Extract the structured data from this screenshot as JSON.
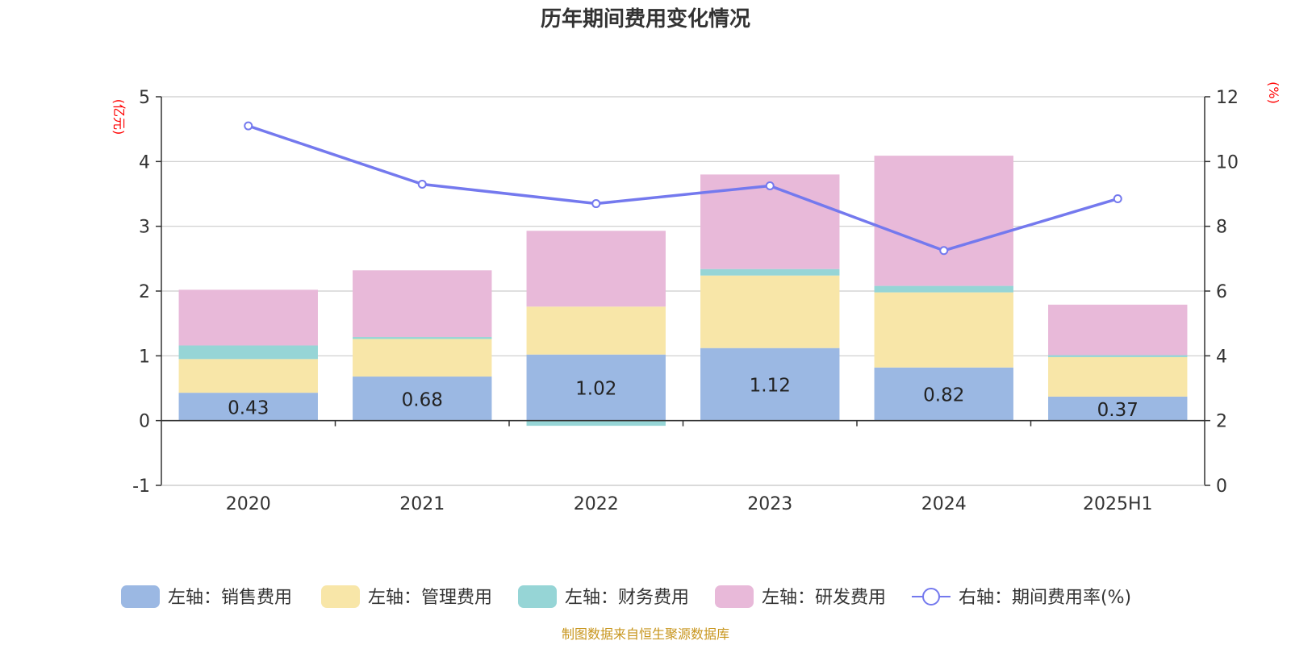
{
  "title": "历年期间费用变化情况",
  "source": "制图数据来自恒生聚源数据库",
  "left_unit": "(亿元)",
  "right_unit": "(%)",
  "colors": {
    "sales": "#9bb8e3",
    "admin": "#f8e6a8",
    "finance": "#96d5d6",
    "rnd": "#e8b9d9",
    "rate": "#7479ee",
    "axis_unit": "#ff0000",
    "source": "#c8961e"
  },
  "chart_data": {
    "type": "bar",
    "stacked": true,
    "categories": [
      "2020",
      "2021",
      "2022",
      "2023",
      "2024",
      "2025H1"
    ],
    "left_axis": {
      "ylim": [
        -1,
        5
      ],
      "ticks": [
        -1,
        0,
        1,
        2,
        3,
        4,
        5
      ]
    },
    "right_axis": {
      "ylim": [
        0,
        12
      ],
      "ticks": [
        0,
        2,
        4,
        6,
        8,
        10,
        12
      ]
    },
    "grid": true,
    "legend_position": "bottom",
    "series": [
      {
        "key": "sales",
        "name": "左轴：销售费用",
        "axis": "left",
        "values": [
          0.43,
          0.68,
          1.02,
          1.12,
          0.82,
          0.37
        ],
        "data_labels": [
          "0.43",
          "0.68",
          "1.02",
          "1.12",
          "0.82",
          "0.37"
        ]
      },
      {
        "key": "admin",
        "name": "左轴：管理费用",
        "axis": "left",
        "values": [
          0.52,
          0.58,
          0.74,
          1.12,
          1.16,
          0.61
        ]
      },
      {
        "key": "finance",
        "name": "左轴：财务费用",
        "axis": "left",
        "values": [
          0.21,
          0.03,
          -0.08,
          0.1,
          0.1,
          0.03
        ]
      },
      {
        "key": "rnd",
        "name": "左轴：研发费用",
        "axis": "left",
        "values": [
          0.86,
          1.03,
          1.17,
          1.46,
          2.01,
          0.78
        ]
      },
      {
        "key": "rate",
        "name": "右轴：期间费用率(%)",
        "axis": "right",
        "type": "line",
        "values": [
          11.1,
          9.3,
          8.7,
          9.25,
          7.25,
          8.85
        ]
      }
    ]
  }
}
